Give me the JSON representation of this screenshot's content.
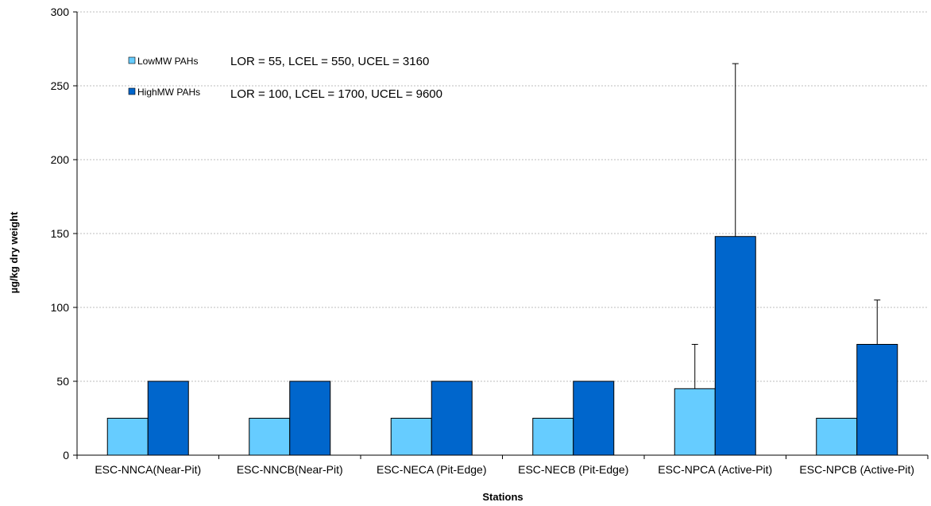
{
  "chart_data": {
    "type": "bar",
    "title": "",
    "xlabel": "Stations",
    "ylabel": "µg/kg dry weight",
    "ylim": [
      0,
      300
    ],
    "yticks": [
      0,
      50,
      100,
      150,
      200,
      250,
      300
    ],
    "grid": true,
    "legend_position": "top-left",
    "categories": [
      "ESC-NNCA(Near-Pit)",
      "ESC-NNCB(Near-Pit)",
      "ESC-NECA (Pit-Edge)",
      "ESC-NECB (Pit-Edge)",
      "ESC-NPCA (Active-Pit)",
      "ESC-NPCB (Active-Pit)"
    ],
    "series": [
      {
        "name": "LowMW PAHs",
        "color": "#66ccff",
        "values": [
          25,
          25,
          25,
          25,
          45,
          25
        ],
        "error_upper": [
          null,
          null,
          null,
          null,
          75,
          null
        ]
      },
      {
        "name": "HighMW PAHs",
        "color": "#0066cc",
        "values": [
          50,
          50,
          50,
          50,
          148,
          75
        ],
        "error_upper": [
          null,
          null,
          null,
          null,
          265,
          105
        ]
      }
    ],
    "annotations": [
      "LOR = 55, LCEL = 550, UCEL = 3160",
      "LOR = 100, LCEL = 1700, UCEL = 9600"
    ]
  }
}
